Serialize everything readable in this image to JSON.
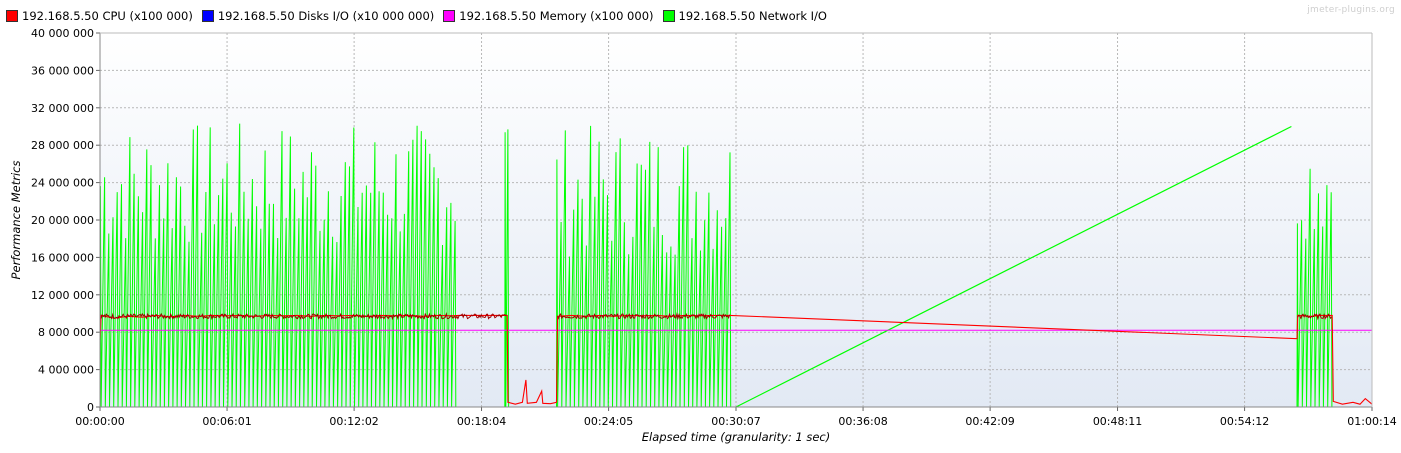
{
  "watermark": "jmeter-plugins.org",
  "chart_data": {
    "type": "line",
    "title": "",
    "xlabel": "Elapsed time (granularity: 1 sec)",
    "ylabel": "Performance Metrics",
    "xlim_sec": [
      0,
      3614
    ],
    "ylim": [
      0,
      40000000
    ],
    "x_ticks": [
      {
        "sec": 0,
        "label": "00:00:00"
      },
      {
        "sec": 361,
        "label": "00:06:01"
      },
      {
        "sec": 722,
        "label": "00:12:02"
      },
      {
        "sec": 1084,
        "label": "00:18:04"
      },
      {
        "sec": 1445,
        "label": "00:24:05"
      },
      {
        "sec": 1807,
        "label": "00:30:07"
      },
      {
        "sec": 2168,
        "label": "00:36:08"
      },
      {
        "sec": 2529,
        "label": "00:42:09"
      },
      {
        "sec": 2891,
        "label": "00:48:11"
      },
      {
        "sec": 3252,
        "label": "00:54:12"
      },
      {
        "sec": 3614,
        "label": "01:00:14"
      }
    ],
    "y_ticks": [
      {
        "value": 0,
        "label": "0"
      },
      {
        "value": 4000000,
        "label": "4 000 000"
      },
      {
        "value": 8000000,
        "label": "8 000 000"
      },
      {
        "value": 12000000,
        "label": "12 000 000"
      },
      {
        "value": 16000000,
        "label": "16 000 000"
      },
      {
        "value": 20000000,
        "label": "20 000 000"
      },
      {
        "value": 24000000,
        "label": "24 000 000"
      },
      {
        "value": 28000000,
        "label": "28 000 000"
      },
      {
        "value": 32000000,
        "label": "32 000 000"
      },
      {
        "value": 36000000,
        "label": "36 000 000"
      },
      {
        "value": 40000000,
        "label": "40 000 000"
      }
    ],
    "grid": true,
    "legend_position": "top-left",
    "series": [
      {
        "name": "192.168.5.50 CPU (x100 000)",
        "color": "#ff0000",
        "points": [
          [
            0,
            7200000
          ],
          [
            3,
            9800000
          ],
          [
            40,
            9500000
          ],
          [
            80,
            9700000
          ],
          [
            120,
            9600000
          ],
          [
            160,
            9800000
          ],
          [
            200,
            9650000
          ],
          [
            240,
            9800000
          ],
          [
            280,
            9700000
          ],
          [
            320,
            9800000
          ],
          [
            360,
            9750000
          ],
          [
            400,
            9800000
          ],
          [
            440,
            9700000
          ],
          [
            480,
            9800000
          ],
          [
            520,
            9750000
          ],
          [
            560,
            9800000
          ],
          [
            600,
            9700000
          ],
          [
            640,
            9800000
          ],
          [
            680,
            9750000
          ],
          [
            720,
            9800000
          ],
          [
            760,
            9700000
          ],
          [
            800,
            9800000
          ],
          [
            840,
            9750000
          ],
          [
            880,
            9800000
          ],
          [
            920,
            9700000
          ],
          [
            960,
            9800000
          ],
          [
            1000,
            9750000
          ],
          [
            1018,
            9800000
          ],
          [
            1056,
            9800000
          ],
          [
            1157,
            9800000
          ],
          [
            1159,
            500000
          ],
          [
            1180,
            300000
          ],
          [
            1200,
            500000
          ],
          [
            1210,
            2900000
          ],
          [
            1214,
            400000
          ],
          [
            1240,
            500000
          ],
          [
            1255,
            1700000
          ],
          [
            1258,
            400000
          ],
          [
            1280,
            350000
          ],
          [
            1297,
            500000
          ],
          [
            1300,
            9700000
          ],
          [
            1340,
            9800000
          ],
          [
            1380,
            9700000
          ],
          [
            1420,
            9800000
          ],
          [
            1460,
            9700000
          ],
          [
            1500,
            9800000
          ],
          [
            1540,
            9750000
          ],
          [
            1580,
            9800000
          ],
          [
            1620,
            9700000
          ],
          [
            1660,
            9800000
          ],
          [
            1700,
            9750000
          ],
          [
            1740,
            9800000
          ],
          [
            1770,
            9800000
          ],
          [
            1790,
            9800000
          ],
          [
            3401,
            7300000
          ],
          [
            3403,
            9800000
          ],
          [
            3440,
            9700000
          ],
          [
            3470,
            9800000
          ],
          [
            3501,
            9800000
          ],
          [
            3504,
            600000
          ],
          [
            3530,
            300000
          ],
          [
            3560,
            500000
          ],
          [
            3580,
            300000
          ],
          [
            3595,
            900000
          ],
          [
            3614,
            300000
          ]
        ]
      },
      {
        "name": "192.168.5.50 Disks I/O (x10 000 000)",
        "color": "#0000ff",
        "points": [
          [
            0,
            0
          ],
          [
            3614,
            0
          ]
        ]
      },
      {
        "name": "192.168.5.50 Memory (x100 000)",
        "color": "#ff00ff",
        "points": [
          [
            0,
            8200000
          ],
          [
            3614,
            8200000
          ]
        ]
      },
      {
        "name": "192.168.5.50 Network I/O",
        "color": "#00ff00",
        "baseline": [
          [
            0,
            0
          ],
          [
            1056,
            0
          ],
          [
            1297,
            0
          ],
          [
            1807,
            0
          ]
        ],
        "spike_segments": [
          {
            "start": 0,
            "end": 1018,
            "period": 12,
            "min": 17000000,
            "max": 30500000
          },
          {
            "start": 1150,
            "end": 1158,
            "period": 8,
            "min": 29000000,
            "max": 30000000
          },
          {
            "start": 1297,
            "end": 1790,
            "period": 12,
            "min": 16000000,
            "max": 30200000
          },
          {
            "start": 3401,
            "end": 3501,
            "period": 12,
            "min": 18000000,
            "max": 30000000
          }
        ],
        "ramp": [
          [
            1807,
            0
          ],
          [
            3385,
            30000000
          ]
        ],
        "points": [
          [
            0,
            0
          ],
          [
            36,
            22800000
          ],
          [
            84,
            27500000
          ],
          [
            132,
            30300000
          ],
          [
            180,
            26500000
          ],
          [
            228,
            29600000
          ],
          [
            276,
            30500000
          ],
          [
            324,
            26600000
          ],
          [
            372,
            29600000
          ],
          [
            420,
            30400000
          ],
          [
            468,
            29800000
          ],
          [
            516,
            30300000
          ],
          [
            564,
            30000000
          ],
          [
            612,
            28900000
          ],
          [
            660,
            30200000
          ],
          [
            708,
            30200000
          ],
          [
            756,
            30500000
          ],
          [
            804,
            30400000
          ],
          [
            852,
            28500000
          ],
          [
            900,
            30200000
          ],
          [
            948,
            29900000
          ],
          [
            996,
            30700000
          ],
          [
            1018,
            0
          ],
          [
            1056,
            0
          ],
          [
            1155,
            30000000
          ],
          [
            1158,
            0
          ],
          [
            1297,
            0
          ],
          [
            1310,
            16000000
          ],
          [
            1356,
            29800000
          ],
          [
            1404,
            30300000
          ],
          [
            1452,
            29800000
          ],
          [
            1500,
            30200000
          ],
          [
            1548,
            30100000
          ],
          [
            1596,
            29800000
          ],
          [
            1644,
            28700000
          ],
          [
            1692,
            29900000
          ],
          [
            1740,
            26300000
          ],
          [
            1790,
            0
          ],
          [
            1807,
            0
          ],
          [
            3385,
            30000000
          ],
          [
            3401,
            29800000
          ],
          [
            3449,
            30000000
          ],
          [
            3497,
            30300000
          ],
          [
            3501,
            0
          ],
          [
            3614,
            0
          ]
        ]
      }
    ]
  }
}
